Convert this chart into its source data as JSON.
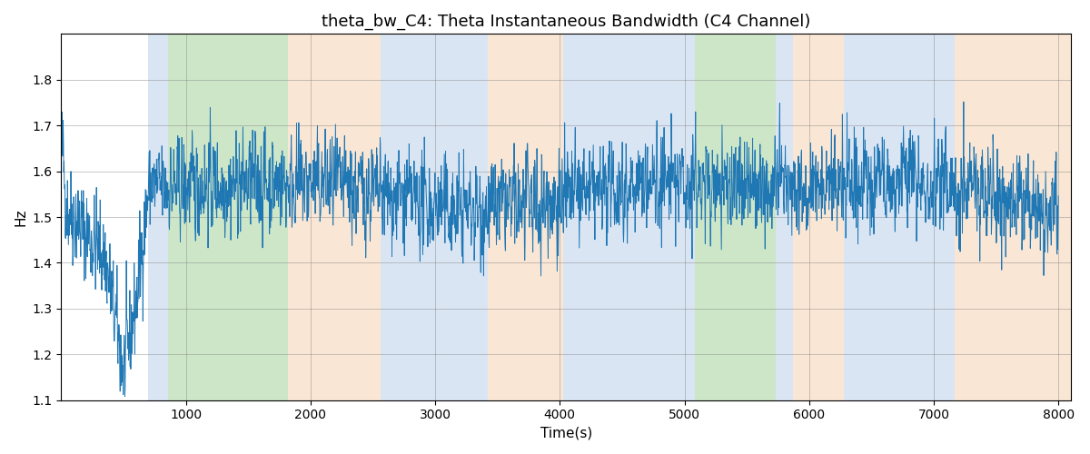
{
  "title": "theta_bw_C4: Theta Instantaneous Bandwidth (C4 Channel)",
  "xlabel": "Time(s)",
  "ylabel": "Hz",
  "xlim": [
    0,
    8100
  ],
  "ylim": [
    1.1,
    1.9
  ],
  "line_color": "#1f77b4",
  "line_width": 0.7,
  "figsize": [
    12,
    5
  ],
  "dpi": 100,
  "bg_bands": [
    {
      "start": 700,
      "end": 860,
      "color": "#aec6e8",
      "alpha": 0.45
    },
    {
      "start": 860,
      "end": 1820,
      "color": "#90c987",
      "alpha": 0.45
    },
    {
      "start": 1820,
      "end": 2560,
      "color": "#f5c8a0",
      "alpha": 0.45
    },
    {
      "start": 2560,
      "end": 3420,
      "color": "#aec6e8",
      "alpha": 0.45
    },
    {
      "start": 3420,
      "end": 4030,
      "color": "#f5c8a0",
      "alpha": 0.45
    },
    {
      "start": 4030,
      "end": 4870,
      "color": "#aec6e8",
      "alpha": 0.45
    },
    {
      "start": 4870,
      "end": 5080,
      "color": "#aec6e8",
      "alpha": 0.45
    },
    {
      "start": 5080,
      "end": 5730,
      "color": "#90c987",
      "alpha": 0.45
    },
    {
      "start": 5730,
      "end": 5870,
      "color": "#aec6e8",
      "alpha": 0.45
    },
    {
      "start": 5870,
      "end": 6280,
      "color": "#f5c8a0",
      "alpha": 0.45
    },
    {
      "start": 6280,
      "end": 7170,
      "color": "#aec6e8",
      "alpha": 0.45
    },
    {
      "start": 7170,
      "end": 8100,
      "color": "#f5c8a0",
      "alpha": 0.45
    }
  ],
  "xticks": [
    1000,
    2000,
    3000,
    4000,
    5000,
    6000,
    7000,
    8000
  ],
  "yticks": [
    1.1,
    1.2,
    1.3,
    1.4,
    1.5,
    1.6,
    1.7,
    1.8
  ],
  "seed": 42,
  "n_points": 3200,
  "sample_rate": 0.4
}
